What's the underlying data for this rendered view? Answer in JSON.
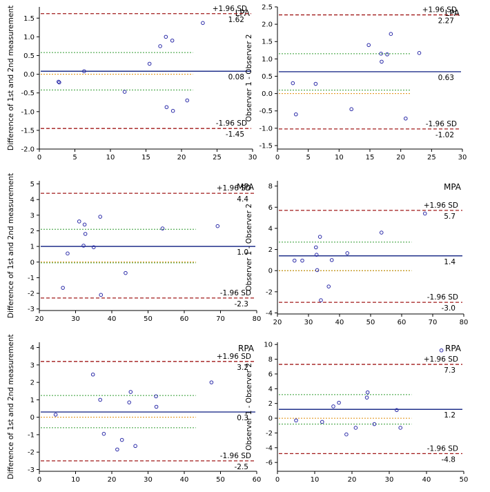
{
  "colors": {
    "mean": "#1f2f8a",
    "limits": "#a01818",
    "ci": "#2e9a2e",
    "zero": "#e08a00",
    "points": "#2a2aa8",
    "axes": "#000000"
  },
  "chart_data": [
    {
      "type": "scatter",
      "title": "LPA",
      "ylabel": "Difference of 1st and 2nd measurement",
      "xlabel": "",
      "xlim": [
        0,
        30
      ],
      "ylim": [
        -2.0,
        1.8
      ],
      "xticks": [
        0,
        5,
        10,
        15,
        20,
        25,
        30
      ],
      "yticks": [
        -2.0,
        -1.5,
        -1.0,
        -0.5,
        0.0,
        0.5,
        1.0,
        1.5
      ],
      "tick_decimals": 1,
      "mean": 0.08,
      "mean_label": "0.08",
      "upper": 1.62,
      "upper_label": "1.62",
      "upper_name": "+1.96 SD",
      "lower": -1.45,
      "lower_label": "-1.45",
      "lower_name": "-1.96 SD",
      "ci_upper": 0.58,
      "ci_lower": -0.42,
      "points": [
        [
          2.7,
          -0.2
        ],
        [
          2.8,
          -0.22
        ],
        [
          6.3,
          0.08
        ],
        [
          12.0,
          -0.47
        ],
        [
          15.5,
          0.28
        ],
        [
          17.0,
          0.75
        ],
        [
          17.8,
          1.0
        ],
        [
          17.9,
          -0.88
        ],
        [
          18.7,
          0.9
        ],
        [
          18.8,
          -0.98
        ],
        [
          20.8,
          -0.7
        ],
        [
          23.0,
          1.37
        ]
      ]
    },
    {
      "type": "scatter",
      "title": "LPA",
      "ylabel": "Observer 1 - Observer 2",
      "xlabel": "",
      "xlim": [
        0,
        30
      ],
      "ylim": [
        -1.6,
        2.5
      ],
      "xticks": [
        0,
        5,
        10,
        15,
        20,
        25,
        30
      ],
      "yticks": [
        -1.5,
        -1.0,
        -0.5,
        0.0,
        0.5,
        1.0,
        1.5,
        2.0,
        2.5
      ],
      "tick_decimals": 1,
      "mean": 0.63,
      "mean_label": "0.63",
      "upper": 2.27,
      "upper_label": "2.27",
      "upper_name": "+1.96 SD",
      "lower": -1.02,
      "lower_label": "-1.02",
      "lower_name": "-1.96 SD",
      "ci_upper": 1.15,
      "ci_lower": 0.1,
      "points": [
        [
          2.5,
          0.3
        ],
        [
          3.0,
          -0.6
        ],
        [
          6.2,
          0.28
        ],
        [
          12.0,
          -0.45
        ],
        [
          14.8,
          1.4
        ],
        [
          16.8,
          1.15
        ],
        [
          16.9,
          0.92
        ],
        [
          17.8,
          1.13
        ],
        [
          18.4,
          1.72
        ],
        [
          20.8,
          -0.72
        ],
        [
          23.0,
          1.17
        ]
      ]
    },
    {
      "type": "scatter",
      "title": "MPA",
      "ylabel": "Difference of 1st and 2nd measurement",
      "xlabel": "",
      "xlim": [
        20,
        80
      ],
      "ylim": [
        -3.1,
        5.2
      ],
      "xticks": [
        20,
        30,
        40,
        50,
        60,
        70,
        80
      ],
      "yticks": [
        -3,
        -2,
        -1,
        0,
        1,
        2,
        3,
        4,
        5
      ],
      "tick_decimals": 0,
      "mean": 1.0,
      "mean_label": "1.0",
      "upper": 4.4,
      "upper_label": "4.4",
      "upper_name": "+1.96 SD",
      "lower": -2.3,
      "lower_label": "-2.3",
      "lower_name": "-1.96 SD",
      "ci_upper": 2.1,
      "ci_lower": -0.05,
      "points": [
        [
          26.5,
          -1.65
        ],
        [
          27.8,
          0.55
        ],
        [
          31.0,
          2.6
        ],
        [
          32.2,
          1.05
        ],
        [
          32.5,
          2.4
        ],
        [
          32.7,
          1.8
        ],
        [
          35.0,
          0.95
        ],
        [
          36.8,
          2.9
        ],
        [
          37.0,
          -2.1
        ],
        [
          43.8,
          -0.7
        ],
        [
          54.0,
          2.15
        ],
        [
          69.2,
          2.3
        ]
      ]
    },
    {
      "type": "scatter",
      "title": "MPA",
      "ylabel": "Observer 1 - Observer 2",
      "xlabel": "",
      "xlim": [
        20,
        80
      ],
      "ylim": [
        -4.1,
        8.5
      ],
      "xticks": [
        20,
        30,
        40,
        50,
        60,
        70,
        80
      ],
      "yticks": [
        -4,
        -2,
        0,
        2,
        4,
        6,
        8
      ],
      "tick_decimals": 0,
      "mean": 1.4,
      "mean_label": "1.4",
      "upper": 5.7,
      "upper_label": "5.7",
      "upper_name": "+1.96 SD",
      "lower": -3.0,
      "lower_label": "-3.0",
      "lower_name": "-1.96 SD",
      "ci_upper": 2.7,
      "ci_lower": 0.0,
      "points": [
        [
          25.5,
          0.95
        ],
        [
          28.0,
          0.95
        ],
        [
          32.4,
          2.2
        ],
        [
          32.6,
          1.5
        ],
        [
          32.8,
          0.05
        ],
        [
          33.7,
          3.2
        ],
        [
          34.0,
          -2.8
        ],
        [
          36.5,
          -1.5
        ],
        [
          37.5,
          1.0
        ],
        [
          42.5,
          1.65
        ],
        [
          53.5,
          3.6
        ],
        [
          67.5,
          5.4
        ]
      ]
    },
    {
      "type": "scatter",
      "title": "RPA",
      "ylabel": "Difference of 1st and 2nd measurement",
      "xlabel": "",
      "xlim": [
        0,
        60
      ],
      "ylim": [
        -3.1,
        4.3
      ],
      "xticks": [
        0,
        10,
        20,
        30,
        40,
        50,
        60
      ],
      "yticks": [
        -3,
        -2,
        -1,
        0,
        1,
        2,
        3,
        4
      ],
      "tick_decimals": 0,
      "mean": 0.3,
      "mean_label": "0.3",
      "upper": 3.2,
      "upper_label": "3.2",
      "upper_name": "+1.96 SD",
      "lower": -2.5,
      "lower_label": "-2.5",
      "lower_name": "-1.96 SD",
      "ci_upper": 1.25,
      "ci_lower": -0.6,
      "points": [
        [
          4.5,
          0.15
        ],
        [
          14.8,
          2.45
        ],
        [
          16.8,
          1.0
        ],
        [
          17.8,
          -0.95
        ],
        [
          21.5,
          -1.85
        ],
        [
          22.8,
          -1.3
        ],
        [
          24.8,
          0.85
        ],
        [
          25.2,
          1.45
        ],
        [
          26.5,
          -1.65
        ],
        [
          32.2,
          1.2
        ],
        [
          32.3,
          0.6
        ],
        [
          47.5,
          2.0
        ]
      ]
    },
    {
      "type": "scatter",
      "title": "RPA",
      "ylabel": "Observer 1 - Observer 2",
      "xlabel": "",
      "xlim": [
        0,
        50
      ],
      "ylim": [
        -7.2,
        10.3
      ],
      "xticks": [
        0,
        10,
        20,
        30,
        40,
        50
      ],
      "yticks": [
        -6,
        -4,
        -2,
        0,
        2,
        4,
        6,
        8,
        10
      ],
      "tick_decimals": 0,
      "mean": 1.2,
      "mean_label": "1.2",
      "upper": 7.3,
      "upper_label": "7.3",
      "upper_name": "+1.96 SD",
      "lower": -4.8,
      "lower_label": "-4.8",
      "lower_name": "-1.96 SD",
      "ci_upper": 3.2,
      "ci_lower": -0.8,
      "points": [
        [
          5.0,
          -0.3
        ],
        [
          12.0,
          -0.5
        ],
        [
          15.0,
          1.6
        ],
        [
          16.5,
          2.1
        ],
        [
          18.5,
          -2.2
        ],
        [
          21.0,
          -1.3
        ],
        [
          24.0,
          2.8
        ],
        [
          24.2,
          3.5
        ],
        [
          26.0,
          -0.8
        ],
        [
          32.0,
          1.1
        ],
        [
          33.0,
          -1.3
        ],
        [
          44.0,
          9.2
        ]
      ]
    }
  ]
}
